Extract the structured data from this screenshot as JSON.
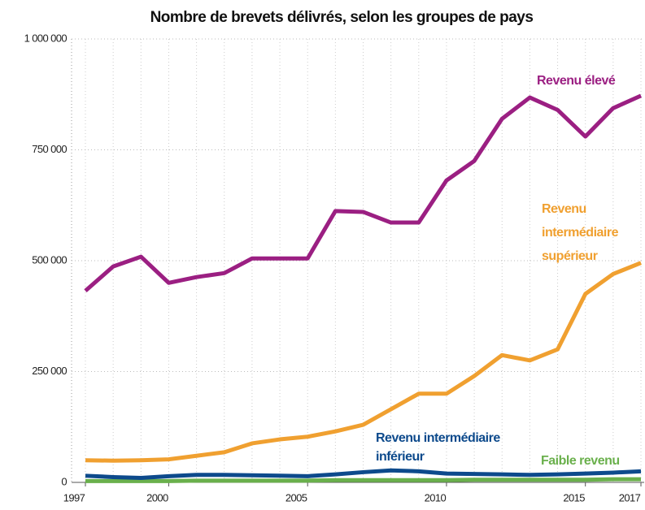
{
  "chart_data": {
    "type": "line",
    "title": "Nombre de brevets délivrés, selon les groupes de pays",
    "x": [
      1997,
      1998,
      1999,
      2000,
      2001,
      2002,
      2003,
      2004,
      2005,
      2006,
      2007,
      2008,
      2009,
      2010,
      2011,
      2012,
      2013,
      2014,
      2015,
      2016,
      2017
    ],
    "xlim": [
      1997,
      2017
    ],
    "xticks": [
      1997,
      2000,
      2005,
      2010,
      2015,
      2017
    ],
    "ylim": [
      0,
      1000000
    ],
    "yticks": [
      0,
      {
        "value": 250000,
        "label": "250 000"
      },
      {
        "value": 500000,
        "label": "500 000"
      },
      {
        "value": 750000,
        "label": "750 000"
      },
      {
        "value": 1000000,
        "label": "1 000 000"
      }
    ],
    "grid": true,
    "series": [
      {
        "name": "Revenu élevé",
        "color": "#9b1f82",
        "values": [
          432000,
          487000,
          509000,
          450000,
          463000,
          472000,
          505000,
          505000,
          505000,
          612000,
          610000,
          586000,
          586000,
          681000,
          725000,
          820000,
          868000,
          840000,
          780000,
          844000,
          872000
        ]
      },
      {
        "name": "Revenu intermédiaire supérieur",
        "color": "#f0a030",
        "values": [
          50000,
          49000,
          50000,
          52000,
          60000,
          68000,
          88000,
          97000,
          103000,
          115000,
          130000,
          165000,
          200000,
          200000,
          240000,
          287000,
          275000,
          300000,
          425000,
          470000,
          495000
        ]
      },
      {
        "name": "Revenu intermédiaire inférieur",
        "color": "#0d4a8c",
        "values": [
          15000,
          12000,
          10000,
          14000,
          17000,
          17000,
          16000,
          15000,
          14000,
          18000,
          23000,
          27000,
          25000,
          20000,
          19000,
          18000,
          17000,
          18000,
          20000,
          22000,
          25000
        ]
      },
      {
        "name": "Faible revenu",
        "color": "#6ab04c",
        "values": [
          3000,
          3000,
          3000,
          3000,
          4000,
          4000,
          4000,
          4000,
          4000,
          5000,
          5000,
          5000,
          5000,
          5000,
          6000,
          6000,
          6000,
          6000,
          6000,
          7000,
          7000
        ]
      }
    ]
  }
}
